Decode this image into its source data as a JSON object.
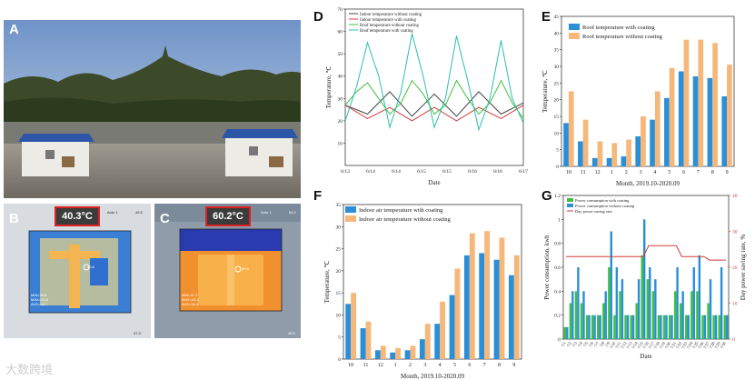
{
  "figure": {
    "panel_labels": {
      "A": "A",
      "B": "B",
      "C": "C",
      "D": "D",
      "E": "E",
      "F": "F",
      "G": "G"
    },
    "watermark": "大数跨境",
    "colors": {
      "blue": "#2b8fd8",
      "orange": "#f5b77a",
      "green": "#3fbf3f",
      "red": "#d23a3a"
    }
  },
  "thermal_b": {
    "temp_box": "40.3°C",
    "auto_label": "Auto 1",
    "auto_value": "45.5",
    "corner_value": "37.3",
    "stats": [
      "MIN=39.8",
      "MAX=43.8",
      "AVG=40.7"
    ],
    "marker": "40.8"
  },
  "thermal_c": {
    "temp_box": "60.2°C",
    "auto_label": "Auto 1",
    "auto_value": "64.2",
    "corner_value": "45.9",
    "stats": [
      "MIN=47.2",
      "MAX=63.2",
      "AVG=59.3"
    ],
    "marker": "59.8"
  },
  "chart_data": [
    {
      "id": "D",
      "type": "line",
      "xlabel": "Date",
      "ylabel": "Temperature, ℃",
      "ylim": [
        0,
        70
      ],
      "yticks": [
        10,
        20,
        30,
        40,
        50,
        60,
        70
      ],
      "xticks": [
        "6/13",
        "6/14",
        "6/14",
        "6/15",
        "6/15",
        "6/16",
        "6/16",
        "6/17"
      ],
      "legend": [
        "Indoor temperature without coating",
        "Indoor temperature with coating",
        "Roof temperature without coating",
        "Roof temperature with coating"
      ],
      "series": [
        {
          "name": "Indoor temperature without coating",
          "color": "#444444",
          "x": [
            0,
            0.5,
            1,
            1.5,
            2,
            2.5,
            3,
            3.5,
            4
          ],
          "values": [
            27,
            23,
            33,
            22,
            32,
            22,
            33,
            23,
            28
          ]
        },
        {
          "name": "Indoor temperature with coating",
          "color": "#d23a3a",
          "x": [
            0,
            0.5,
            1,
            1.5,
            2,
            2.5,
            3,
            3.5,
            4
          ],
          "values": [
            27,
            21,
            26,
            20,
            26,
            20,
            26,
            21,
            27
          ]
        },
        {
          "name": "Roof temperature without coating",
          "color": "#3fbf3f",
          "x": [
            0,
            0.25,
            0.5,
            0.75,
            1,
            1.25,
            1.5,
            1.75,
            2,
            2.25,
            2.5,
            2.75,
            3,
            3.25,
            3.5,
            3.75,
            4
          ],
          "values": [
            27,
            33,
            37,
            30,
            23,
            28,
            38,
            32,
            23,
            27,
            38,
            30,
            23,
            28,
            38,
            28,
            21
          ]
        },
        {
          "name": "Roof temperature with coating",
          "color": "#2bbfae",
          "x": [
            0,
            0.25,
            0.5,
            0.75,
            1,
            1.25,
            1.5,
            1.75,
            2,
            2.25,
            2.5,
            2.75,
            3,
            3.25,
            3.5,
            3.75,
            4
          ],
          "values": [
            20,
            35,
            55,
            40,
            17,
            33,
            59,
            40,
            17,
            30,
            58,
            38,
            16,
            30,
            56,
            30,
            19
          ]
        }
      ]
    },
    {
      "id": "E",
      "type": "bar",
      "xlabel": "Month, 2019.10-2020.09",
      "ylabel": "Temperature, ℃",
      "ylim": [
        0,
        45
      ],
      "yticks": [
        0,
        5,
        10,
        15,
        20,
        25,
        30,
        35,
        40,
        45
      ],
      "categories": [
        "10",
        "11",
        "12",
        "1",
        "2",
        "3",
        "4",
        "5",
        "6",
        "7",
        "8",
        "9"
      ],
      "series": [
        {
          "name": "Roof temperature with coating",
          "color": "#2b8fd8",
          "values": [
            13,
            7.5,
            2.5,
            2.5,
            3,
            9,
            14,
            20.5,
            28.5,
            27,
            26.5,
            21
          ]
        },
        {
          "name": "Roof temperature without coating",
          "color": "#f5b77a",
          "values": [
            22.5,
            14,
            7.5,
            7,
            8,
            15,
            22.5,
            29.5,
            38,
            38,
            37,
            30.5
          ]
        }
      ]
    },
    {
      "id": "F",
      "type": "bar",
      "xlabel": "Month, 2019.10-2020.09",
      "ylabel": "Temperature, ℃",
      "ylim": [
        0,
        35
      ],
      "yticks": [
        0,
        5,
        10,
        15,
        20,
        25,
        30,
        35
      ],
      "categories": [
        "10",
        "11",
        "12",
        "1",
        "2",
        "3",
        "4",
        "5",
        "6",
        "7",
        "8",
        "9"
      ],
      "series": [
        {
          "name": "Indoor air temperature with coating",
          "color": "#2b8fd8",
          "values": [
            12.5,
            7,
            2,
            1.5,
            2,
            4.5,
            8,
            14.5,
            23.5,
            24,
            22.5,
            19
          ]
        },
        {
          "name": "Indoor air temperature without coating",
          "color": "#f5b77a",
          "values": [
            15,
            8.5,
            3,
            2.5,
            3,
            8,
            13,
            20.5,
            28.5,
            29,
            27.5,
            23.5
          ]
        }
      ]
    },
    {
      "id": "G",
      "type": "bar",
      "xlabel": "Date",
      "ylabel": "Power consumption, kwh",
      "ylabel_right": "Day power saving rate, %",
      "ylim": [
        0,
        1.2
      ],
      "ylim_right": [
        0,
        40
      ],
      "yticks": [
        0,
        0.2,
        0.4,
        0.6,
        0.8,
        1.0,
        1.2
      ],
      "yticks_right": [
        0,
        10,
        20,
        30,
        40
      ],
      "categories": [
        "7/1",
        "7/2",
        "7/3",
        "7/4",
        "7/5",
        "7/6",
        "7/7",
        "7/8",
        "7/9",
        "7/10",
        "7/11",
        "7/12",
        "7/13",
        "7/14",
        "7/15",
        "7/16",
        "7/17",
        "7/18",
        "7/19",
        "7/20",
        "7/21",
        "7/22",
        "7/23",
        "7/24",
        "7/25",
        "7/26",
        "7/27",
        "7/28",
        "7/29",
        "7/30"
      ],
      "legend": [
        "Power consumption with coating",
        "Power consumption without coating",
        "Day power saving rate"
      ],
      "series": [
        {
          "name": "Power consumption with coating",
          "color": "#3fbf3f",
          "values": [
            0.1,
            0.3,
            0.4,
            0.3,
            0.2,
            0.2,
            0.2,
            0.3,
            0.6,
            0.2,
            0.4,
            0.2,
            0.2,
            0.3,
            0.7,
            0.5,
            0.4,
            0.2,
            0.2,
            0.2,
            0.4,
            0.3,
            0.2,
            0.4,
            0.4,
            0.2,
            0.3,
            0.2,
            0.2,
            0.2
          ]
        },
        {
          "name": "Power consumption without coating",
          "color": "#2b8fd8",
          "values": [
            0.1,
            0.4,
            0.6,
            0.4,
            0.2,
            0.2,
            0.2,
            0.4,
            0.9,
            0.6,
            0.5,
            0.2,
            0.2,
            0.5,
            1.0,
            0.6,
            0.5,
            0.2,
            0.2,
            0.2,
            0.6,
            0.4,
            0.2,
            0.6,
            0.7,
            0.2,
            0.5,
            0.2,
            0.6,
            0.2
          ]
        },
        {
          "name": "Day power saving rate",
          "color": "#d23a3a",
          "axis": "right",
          "values": [
            23,
            23,
            23,
            23,
            23,
            23,
            23,
            23,
            23,
            23,
            23,
            23,
            23,
            23,
            23,
            26,
            26,
            26,
            26,
            26,
            26,
            23,
            23,
            23,
            23,
            23,
            22,
            22,
            22,
            22
          ]
        }
      ]
    }
  ]
}
